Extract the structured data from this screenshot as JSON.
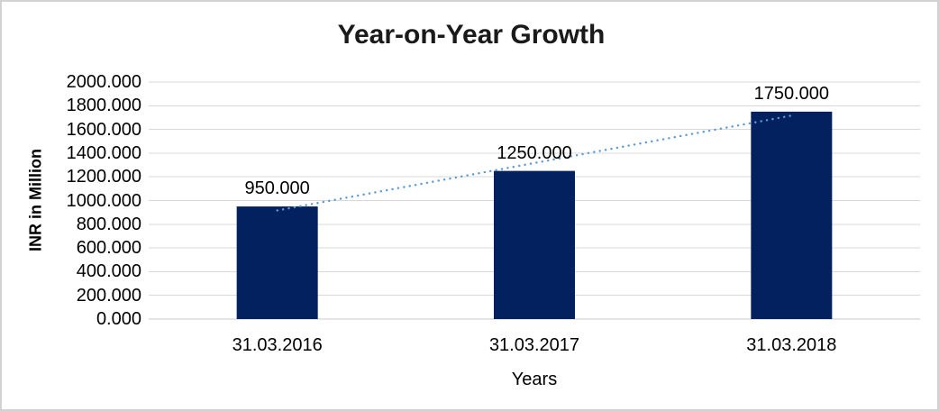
{
  "chart_data": {
    "type": "bar",
    "title": "Year-on-Year Growth",
    "xlabel": "Years",
    "ylabel": "INR in Million",
    "categories": [
      "31.03.2016",
      "31.03.2017",
      "31.03.2018"
    ],
    "values": [
      950,
      1250,
      1750
    ],
    "data_labels": [
      "950.000",
      "1250.000",
      "1750.000"
    ],
    "ylim": [
      0,
      2000
    ],
    "ytick_step": 200,
    "ytick_decimals": 3,
    "grid": true,
    "legend": "none",
    "trendline": {
      "type": "linear",
      "style": "dotted"
    },
    "colors": {
      "bar": "#03215f",
      "trendline": "#5b9bd5",
      "gridline": "#d9d9d9",
      "axis_line": "#c9c9c9",
      "text": "#000000",
      "title_text": "#1a1a1a",
      "frame_border": "#d2d2d2"
    }
  }
}
